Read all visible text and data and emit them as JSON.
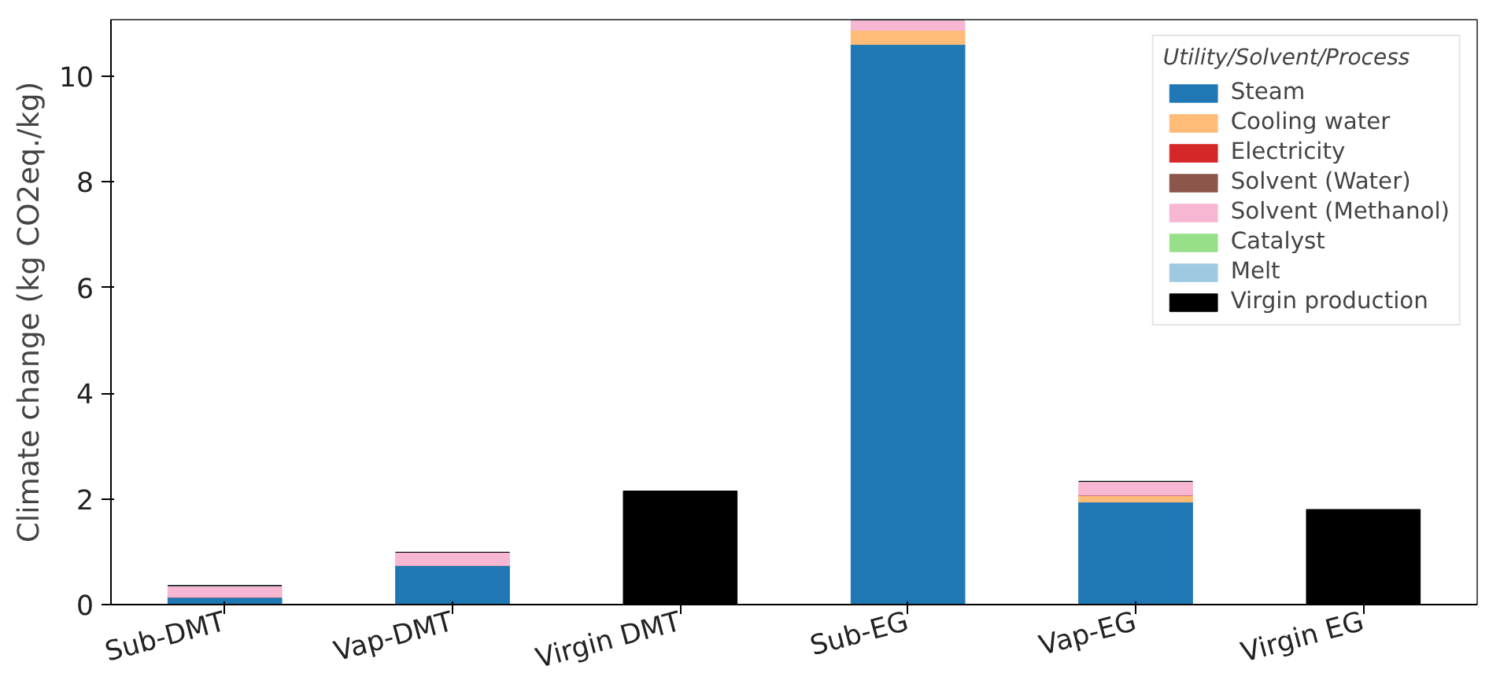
{
  "chart_data": {
    "type": "bar",
    "stacked": true,
    "ylabel": "Climate change (kg CO2eq./kg)",
    "legend_title": "Utility/Solvent/Process",
    "legend": "top right",
    "grid": false,
    "categories": [
      "Sub-DMT",
      "Vap-DMT",
      "Virgin DMT",
      "Sub-EG",
      "Vap-EG",
      "Virgin EG"
    ],
    "ylim": [
      0,
      11.07
    ],
    "yticks": [
      0,
      2,
      4,
      6,
      8,
      10
    ],
    "series": [
      {
        "name": "Steam",
        "color": "#1f77b4",
        "values": [
          0.14,
          0.74,
          0,
          10.6,
          1.94,
          0
        ]
      },
      {
        "name": "Cooling water",
        "color": "#ffbb78",
        "values": [
          0,
          0,
          0,
          0.27,
          0.13,
          0
        ]
      },
      {
        "name": "Electricity",
        "color": "#d62728",
        "values": [
          0,
          0,
          0,
          0,
          0,
          0
        ]
      },
      {
        "name": "Solvent (Water)",
        "color": "#8c564b",
        "values": [
          0,
          0,
          0,
          0,
          0,
          0
        ]
      },
      {
        "name": "Solvent (Methanol)",
        "color": "#f7b6d2",
        "values": [
          0.22,
          0.25,
          0,
          0.2,
          0.26,
          0
        ]
      },
      {
        "name": "Catalyst",
        "color": "#98df8a",
        "values": [
          0,
          0,
          0,
          0,
          0,
          0
        ]
      },
      {
        "name": "Melt",
        "color": "#9ecae1",
        "values": [
          0,
          0,
          0,
          0,
          0,
          0
        ]
      },
      {
        "name": "Virgin production",
        "color": "#000000",
        "values": [
          0,
          0,
          2.15,
          0,
          0,
          1.8
        ]
      }
    ]
  }
}
